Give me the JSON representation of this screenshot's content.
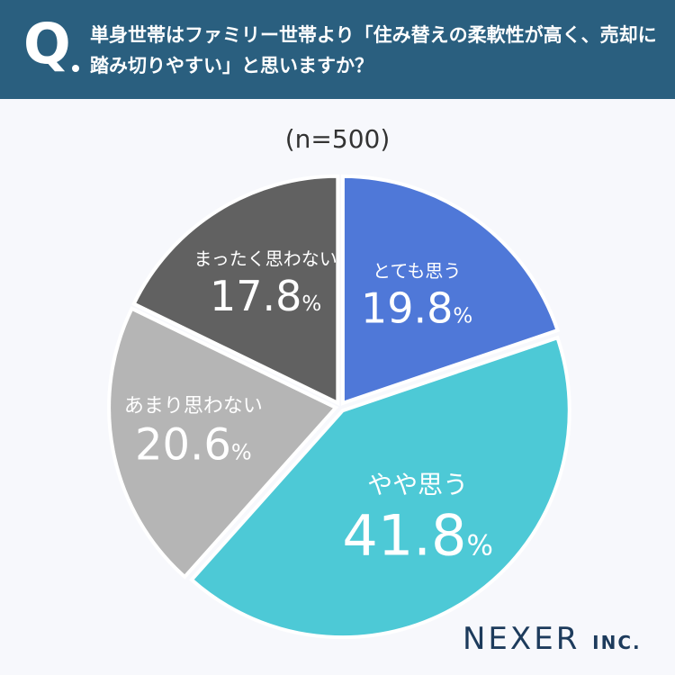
{
  "header": {
    "q_mark": "Q",
    "question": "単身世帯はファミリー世帯より「住み替えの柔軟性が高く、売却に踏み切りやすい」と思いますか？"
  },
  "sample_label": "(n=500)",
  "colors": {
    "header_bg": "#2a5f7f",
    "slice_1": "#4f78d8",
    "slice_2": "#4dc9d6",
    "slice_3": "#b5b5b5",
    "slice_4": "#616161"
  },
  "chart_data": {
    "type": "pie",
    "start_angle_deg": 0,
    "direction": "clockwise",
    "slices": [
      {
        "label": "とても思う",
        "value": 19.8,
        "display": "19.8",
        "color": "#4f78d8"
      },
      {
        "label": "やや思う",
        "value": 41.8,
        "display": "41.8",
        "color": "#4dc9d6"
      },
      {
        "label": "あまり思わない",
        "value": 20.6,
        "display": "20.6",
        "color": "#b5b5b5"
      },
      {
        "label": "まったく思わない",
        "value": 17.8,
        "display": "17.8",
        "color": "#616161"
      }
    ],
    "unit": "%"
  },
  "logo": {
    "name": "NEXER",
    "suffix": "INC."
  }
}
